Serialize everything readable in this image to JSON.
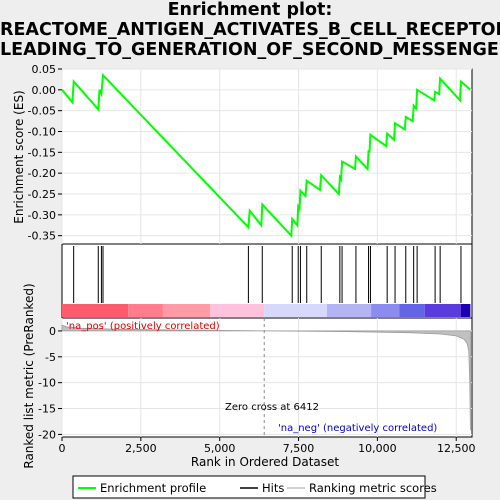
{
  "title_lines": [
    "Enrichment plot:",
    "REACTOME_ANTIGEN_ACTIVATES_B_CELL_RECEPTOR_",
    "LEADING_TO_GENERATION_OF_SECOND_MESSENGERS"
  ],
  "chart_data": [
    {
      "type": "line",
      "name": "enrichment-profile",
      "ylabel": "Enrichment score (ES)",
      "xlim": [
        0,
        13000
      ],
      "ylim": [
        -0.37,
        0.05
      ],
      "yticks": [
        -0.35,
        -0.3,
        -0.25,
        -0.2,
        -0.15,
        -0.1,
        -0.05,
        0.0,
        0.05
      ],
      "ytick_labels": [
        "-0.35",
        "-0.30",
        "-0.25",
        "-0.20",
        "-0.15",
        "-0.10",
        "-0.05",
        "0.00",
        "0.05"
      ],
      "color": "#00ff00",
      "points": [
        [
          0,
          0.0
        ],
        [
          330,
          -0.03
        ],
        [
          370,
          0.02
        ],
        [
          1150,
          -0.047
        ],
        [
          1190,
          0.0
        ],
        [
          1250,
          -0.01
        ],
        [
          1300,
          0.035
        ],
        [
          5910,
          -0.33
        ],
        [
          5950,
          -0.29
        ],
        [
          6320,
          -0.325
        ],
        [
          6350,
          -0.275
        ],
        [
          7270,
          -0.35
        ],
        [
          7300,
          -0.31
        ],
        [
          7460,
          -0.325
        ],
        [
          7490,
          -0.28
        ],
        [
          7530,
          -0.285
        ],
        [
          7560,
          -0.242
        ],
        [
          7720,
          -0.255
        ],
        [
          7760,
          -0.218
        ],
        [
          8180,
          -0.24
        ],
        [
          8220,
          -0.205
        ],
        [
          8780,
          -0.25
        ],
        [
          8810,
          -0.21
        ],
        [
          8850,
          -0.215
        ],
        [
          8880,
          -0.172
        ],
        [
          9290,
          -0.19
        ],
        [
          9320,
          -0.16
        ],
        [
          9690,
          -0.19
        ],
        [
          9720,
          -0.145
        ],
        [
          9750,
          -0.15
        ],
        [
          9780,
          -0.108
        ],
        [
          10280,
          -0.135
        ],
        [
          10310,
          -0.105
        ],
        [
          10530,
          -0.12
        ],
        [
          10560,
          -0.08
        ],
        [
          10870,
          -0.095
        ],
        [
          10900,
          -0.065
        ],
        [
          11120,
          -0.075
        ],
        [
          11150,
          -0.038
        ],
        [
          11230,
          -0.045
        ],
        [
          11260,
          0.0
        ],
        [
          11800,
          -0.025
        ],
        [
          11830,
          -0.005
        ],
        [
          11960,
          -0.01
        ],
        [
          11990,
          0.027
        ],
        [
          12620,
          -0.025
        ],
        [
          12650,
          0.02
        ],
        [
          12950,
          0.0
        ]
      ]
    },
    {
      "type": "scatter",
      "name": "hits",
      "x": [
        370,
        1150,
        1250,
        1300,
        5910,
        6350,
        7300,
        7490,
        7560,
        7760,
        8220,
        8810,
        8880,
        9320,
        9720,
        9780,
        10310,
        10560,
        10900,
        11150,
        11260,
        11830,
        11990,
        12650
      ],
      "color": "#000000"
    },
    {
      "type": "area",
      "name": "ranking-metric-scores",
      "xlabel": "Rank in Ordered Dataset",
      "ylabel": "Ranked list metric (PreRanked)",
      "xlim": [
        0,
        13000
      ],
      "ylim": [
        -20.5,
        2.5
      ],
      "xticks": [
        0,
        2500,
        5000,
        7500,
        10000,
        12500
      ],
      "xtick_labels": [
        "0",
        "2,500",
        "5,000",
        "7,500",
        "10,000",
        "12,500"
      ],
      "yticks": [
        0,
        -5,
        -10,
        -15,
        -20
      ],
      "ytick_labels": [
        "0",
        "-5",
        "-10",
        "-15",
        "-20"
      ],
      "color": "#c0c0c0",
      "points": [
        [
          0,
          1.1
        ],
        [
          150,
          0.8
        ],
        [
          600,
          0.5
        ],
        [
          2000,
          0.3
        ],
        [
          4000,
          0.15
        ],
        [
          6412,
          0.0
        ],
        [
          9000,
          -0.12
        ],
        [
          11000,
          -0.35
        ],
        [
          12000,
          -0.6
        ],
        [
          12500,
          -0.95
        ],
        [
          12750,
          -1.6
        ],
        [
          12850,
          -2.5
        ],
        [
          12900,
          -4.0
        ],
        [
          12930,
          -10.0
        ],
        [
          12950,
          -19.2
        ]
      ],
      "zero_cross": 6412,
      "annotations": {
        "zero_cross_label": "Zero cross at 6412",
        "pos_label": "'na_pos' (positively correlated)",
        "neg_label": "'na_neg' (negatively correlated)"
      }
    }
  ],
  "color_bar": {
    "segments": [
      {
        "from": 0,
        "to": 2100,
        "color": "#ff5a6e"
      },
      {
        "from": 2100,
        "to": 3200,
        "color": "#ff7d8c"
      },
      {
        "from": 3200,
        "to": 4700,
        "color": "#ff9ba6"
      },
      {
        "from": 4700,
        "to": 6412,
        "color": "#ffc2dc"
      },
      {
        "from": 6412,
        "to": 8400,
        "color": "#d8d8fa"
      },
      {
        "from": 8400,
        "to": 9800,
        "color": "#b4b4f5"
      },
      {
        "from": 9800,
        "to": 10700,
        "color": "#8c8cf0"
      },
      {
        "from": 10700,
        "to": 11500,
        "color": "#6464e6"
      },
      {
        "from": 11500,
        "to": 12650,
        "color": "#5a3cdc"
      },
      {
        "from": 12650,
        "to": 12950,
        "color": "#1e00b4"
      }
    ]
  },
  "legend": {
    "items": [
      {
        "label": "Enrichment profile",
        "color": "#00ff00"
      },
      {
        "label": "Hits",
        "color": "#000000"
      },
      {
        "label": "Ranking metric scores",
        "color": "#c0c0c0"
      }
    ]
  }
}
